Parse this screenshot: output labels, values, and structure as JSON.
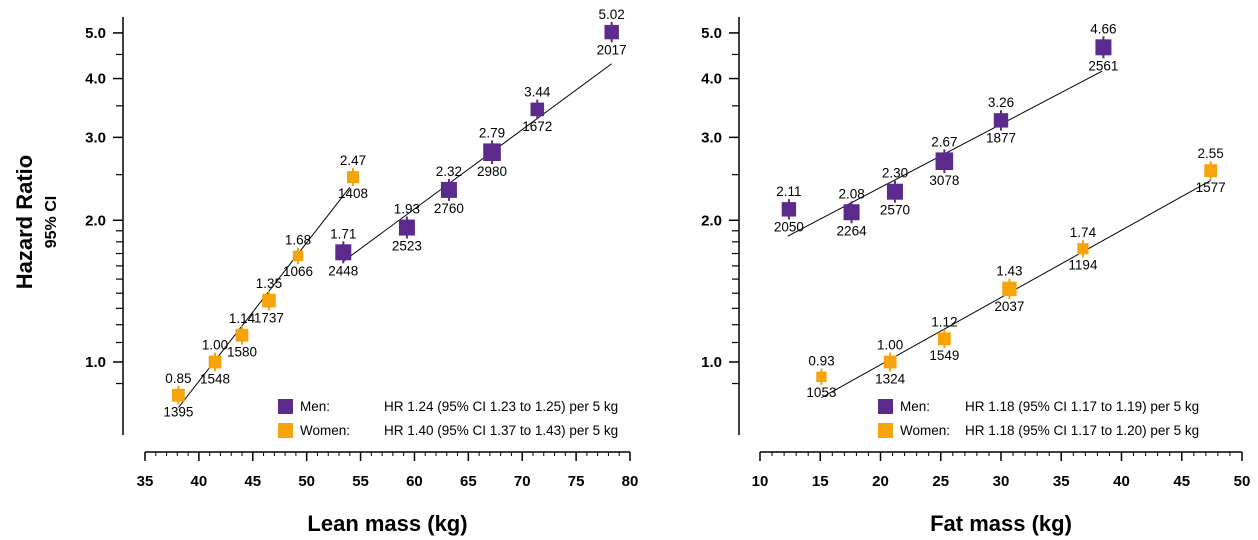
{
  "y_axis": {
    "title": "Hazard Ratio",
    "subtitle": "95% CI"
  },
  "chart_data": [
    {
      "type": "scatter",
      "xlabel": "Lean mass (kg)",
      "ylabel": "Hazard Ratio",
      "y_scale": "log",
      "xlim": [
        35,
        80
      ],
      "ylim": [
        0.78,
        5.4
      ],
      "x_ticks": [
        "35",
        "40",
        "45",
        "50",
        "55",
        "60",
        "65",
        "70",
        "75",
        "80"
      ],
      "y_ticks": [
        "1.0",
        "2.0",
        "3.0",
        "4.0",
        "5.0"
      ],
      "legend_position": "bottom-right",
      "series": [
        {
          "name": "Men",
          "color": "#5b2a8c",
          "legend_label": "Men:",
          "legend_text": "HR 1.24 (95% CI 1.23 to 1.25) per 5 kg",
          "fit_line": {
            "x": [
              53.3,
              78.3
            ],
            "y": [
              1.63,
              4.3
            ]
          },
          "points": [
            {
              "x": 53.4,
              "y": 1.71,
              "hr": "1.71",
              "n": "2448",
              "size": 1.0
            },
            {
              "x": 59.3,
              "y": 1.93,
              "hr": "1.93",
              "n": "2523",
              "size": 1.0
            },
            {
              "x": 63.2,
              "y": 2.32,
              "hr": "2.32",
              "n": "2760",
              "size": 1.0
            },
            {
              "x": 67.2,
              "y": 2.79,
              "hr": "2.79",
              "n": "2980",
              "size": 1.1
            },
            {
              "x": 71.4,
              "y": 3.44,
              "hr": "3.44",
              "n": "1672",
              "size": 0.85
            },
            {
              "x": 78.3,
              "y": 5.02,
              "hr": "5.02",
              "n": "2017",
              "size": 0.9
            }
          ]
        },
        {
          "name": "Women",
          "color": "#f7a30a",
          "legend_label": "Women:",
          "legend_text": "HR 1.40 (95% CI 1.37 to 1.43) per 5 kg",
          "fit_line": {
            "x": [
              38.1,
              54.0
            ],
            "y": [
              0.8,
              2.35
            ]
          },
          "points": [
            {
              "x": 38.1,
              "y": 0.85,
              "hr": "0.85",
              "n": "1395",
              "size": 0.8
            },
            {
              "x": 41.5,
              "y": 1.0,
              "hr": "1.00",
              "n": "1548",
              "size": 0.8
            },
            {
              "x": 44.0,
              "y": 1.14,
              "hr": "1.14",
              "n": "1580",
              "size": 0.8
            },
            {
              "x": 46.5,
              "y": 1.35,
              "hr": "1.35",
              "n": "1737",
              "size": 0.85
            },
            {
              "x": 49.2,
              "y": 1.68,
              "hr": "1.68",
              "n": "1066",
              "size": 0.65
            },
            {
              "x": 54.3,
              "y": 2.47,
              "hr": "2.47",
              "n": "1408",
              "size": 0.75
            }
          ]
        }
      ]
    },
    {
      "type": "scatter",
      "xlabel": "Fat mass (kg)",
      "ylabel": "Hazard Ratio",
      "y_scale": "log",
      "xlim": [
        10,
        50
      ],
      "ylim": [
        0.78,
        5.4
      ],
      "x_ticks": [
        "10",
        "15",
        "20",
        "25",
        "30",
        "35",
        "40",
        "45",
        "50"
      ],
      "y_ticks": [
        "1.0",
        "2.0",
        "3.0",
        "4.0",
        "5.0"
      ],
      "legend_position": "bottom-right",
      "series": [
        {
          "name": "Men",
          "color": "#5b2a8c",
          "legend_label": "Men:",
          "legend_text": "HR 1.18 (95% CI 1.17 to 1.19) per 5 kg",
          "fit_line": {
            "x": [
              12.3,
              38.4
            ],
            "y": [
              1.85,
              4.15
            ]
          },
          "points": [
            {
              "x": 12.4,
              "y": 2.11,
              "hr": "2.11",
              "n": "2050",
              "size": 0.9
            },
            {
              "x": 17.6,
              "y": 2.08,
              "hr": "2.08",
              "n": "2264",
              "size": 1.0
            },
            {
              "x": 21.2,
              "y": 2.3,
              "hr": "2.30",
              "n": "2570",
              "size": 1.0
            },
            {
              "x": 25.3,
              "y": 2.67,
              "hr": "2.67",
              "n": "3078",
              "size": 1.1
            },
            {
              "x": 30.0,
              "y": 3.26,
              "hr": "3.26",
              "n": "1877",
              "size": 0.9
            },
            {
              "x": 38.5,
              "y": 4.66,
              "hr": "4.66",
              "n": "2561",
              "size": 1.0
            }
          ]
        },
        {
          "name": "Women",
          "color": "#f7a30a",
          "legend_label": "Women:",
          "legend_text": "HR 1.18 (95% CI 1.17 to 1.20) per 5 kg",
          "fit_line": {
            "x": [
              15.1,
              47.4
            ],
            "y": [
              0.84,
              2.43
            ]
          },
          "points": [
            {
              "x": 15.1,
              "y": 0.93,
              "hr": "0.93",
              "n": "1053",
              "size": 0.65
            },
            {
              "x": 20.8,
              "y": 1.0,
              "hr": "1.00",
              "n": "1324",
              "size": 0.8
            },
            {
              "x": 25.3,
              "y": 1.12,
              "hr": "1.12",
              "n": "1549",
              "size": 0.8
            },
            {
              "x": 30.7,
              "y": 1.43,
              "hr": "1.43",
              "n": "2037",
              "size": 0.9
            },
            {
              "x": 36.8,
              "y": 1.74,
              "hr": "1.74",
              "n": "1194",
              "size": 0.7
            },
            {
              "x": 47.4,
              "y": 2.55,
              "hr": "2.55",
              "n": "1577",
              "size": 0.8
            }
          ]
        }
      ]
    }
  ]
}
